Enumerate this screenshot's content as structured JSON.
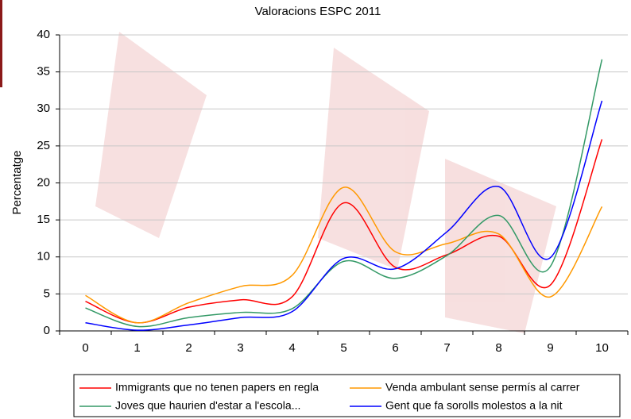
{
  "chart_data": {
    "type": "line",
    "title": "Valoracions ESPC 2011",
    "y_label": "Percentatge",
    "categories": [
      "0",
      "1",
      "2",
      "3",
      "4",
      "5",
      "6",
      "7",
      "8",
      "9",
      "10"
    ],
    "series": [
      {
        "name": "Immigrants que no tenen papers en regla",
        "color": "#ff0000",
        "values": [
          4,
          1.1,
          3.2,
          4.2,
          4.6,
          17.3,
          8.6,
          10.3,
          12.8,
          6.2,
          25.9
        ]
      },
      {
        "name": "Venda ambulant sense permís al carrer",
        "color": "#ff9900",
        "values": [
          4.8,
          1.1,
          3.8,
          6,
          7.5,
          19.4,
          10.7,
          11.8,
          13.1,
          4.6,
          16.8
        ]
      },
      {
        "name": "Joves que haurien d'estar a l'escola...",
        "color": "#339966",
        "values": [
          3.1,
          0.6,
          1.8,
          2.5,
          3,
          9.4,
          7.1,
          10.2,
          15.6,
          8.7,
          36.7
        ]
      },
      {
        "name": "Gent que fa sorolls molestos a la nit",
        "color": "#0000ff",
        "values": [
          1.1,
          0.1,
          0.8,
          1.8,
          2.6,
          9.8,
          8.4,
          13.4,
          19.5,
          9.9,
          31.1
        ]
      }
    ],
    "ylim": [
      0,
      40
    ],
    "yticks": [
      0,
      5,
      10,
      15,
      20,
      25,
      30,
      35,
      40
    ],
    "grid": true
  }
}
